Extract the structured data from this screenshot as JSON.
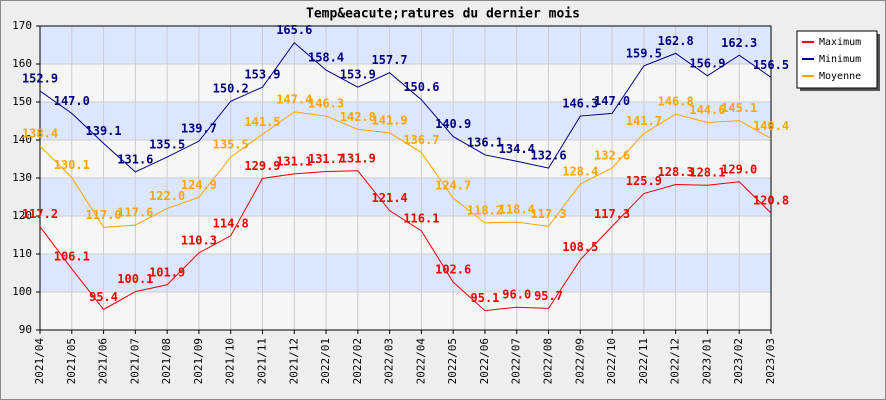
{
  "chart_data": {
    "type": "line",
    "title": "Temp&eacute;ratures du dernier mois",
    "categories": [
      "2021/04",
      "2021/05",
      "2021/06",
      "2021/07",
      "2021/08",
      "2021/09",
      "2021/10",
      "2021/11",
      "2021/12",
      "2022/01",
      "2022/02",
      "2022/03",
      "2022/04",
      "2022/05",
      "2022/06",
      "2022/07",
      "2022/08",
      "2022/09",
      "2022/10",
      "2022/11",
      "2022/12",
      "2023/01",
      "2023/02",
      "2023/03"
    ],
    "series": [
      {
        "name": "Maximum",
        "color": "#ee0000",
        "values": [
          117.2,
          106.1,
          95.4,
          100.1,
          101.9,
          110.3,
          114.8,
          129.9,
          131.1,
          131.7,
          131.9,
          121.4,
          116.1,
          102.6,
          95.1,
          96.0,
          95.7,
          108.5,
          117.3,
          125.9,
          128.3,
          128.1,
          129.0,
          120.8
        ],
        "value_labels": [
          "117.2",
          "106.1",
          "95.4",
          "100.1",
          "101.9",
          "110.3",
          "114.8",
          "129.9",
          "131.1",
          "131.7",
          "131.9",
          "121.4",
          "116.1",
          "102.6",
          "95.1",
          "96.0",
          "95.7",
          "108.5",
          "117.3",
          "125.9",
          "128.3",
          "128.1",
          "129.0",
          "120.8"
        ]
      },
      {
        "name": "Minimum",
        "color": "#000080",
        "values": [
          152.9,
          147.0,
          139.1,
          131.6,
          135.5,
          139.7,
          150.2,
          153.9,
          165.6,
          158.4,
          153.9,
          157.7,
          150.6,
          140.9,
          136.1,
          134.4,
          132.6,
          146.3,
          147.0,
          159.5,
          162.8,
          156.9,
          162.3,
          156.5
        ],
        "value_labels": [
          "152.9",
          "147.0",
          "139.1",
          "131.6",
          "135.5",
          "139.7",
          "150.2",
          "153.9",
          "165.6",
          "158.4",
          "153.9",
          "157.7",
          "150.6",
          "140.9",
          "136.1",
          "134.4",
          "132.6",
          "146.3",
          "147.0",
          "159.5",
          "162.8",
          "156.9",
          "162.3",
          "156.5"
        ]
      },
      {
        "name": "Moyenne",
        "color": "#ffa500",
        "values": [
          138.4,
          130.1,
          117.0,
          117.6,
          122.0,
          124.9,
          135.5,
          141.5,
          147.4,
          146.3,
          142.8,
          141.9,
          136.7,
          124.7,
          118.2,
          118.4,
          117.3,
          128.4,
          132.6,
          141.7,
          146.8,
          144.6,
          145.1,
          140.4
        ],
        "value_labels": [
          "138.4",
          "130.1",
          "117.0",
          "117.6",
          "122.0",
          "124.9",
          "135.5",
          "141.5",
          "147.4",
          "146.3",
          "142.8",
          "141.9",
          "136.7",
          "124.7",
          "118.2",
          "118.4",
          "117.3",
          "128.4",
          "132.6",
          "141.7",
          "146.8",
          "144.6",
          "145.1",
          "140.4"
        ]
      }
    ],
    "ylim": [
      90,
      170
    ],
    "yticks": [
      90,
      100,
      110,
      120,
      130,
      140,
      150,
      160,
      170
    ],
    "grid": true,
    "legend": "top-right"
  }
}
